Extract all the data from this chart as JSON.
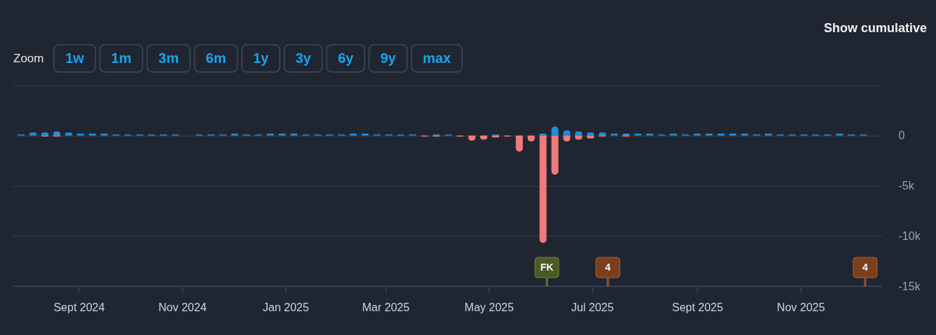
{
  "chart_data": {
    "type": "bar",
    "stacked": true,
    "grid": "y",
    "x": [
      "2024-07-29",
      "2024-08-05",
      "2024-08-12",
      "2024-08-19",
      "2024-08-26",
      "2024-09-02",
      "2024-09-09",
      "2024-09-16",
      "2024-09-23",
      "2024-09-30",
      "2024-10-07",
      "2024-10-14",
      "2024-10-21",
      "2024-10-28",
      "2024-11-04",
      "2024-11-11",
      "2024-11-18",
      "2024-11-25",
      "2024-12-02",
      "2024-12-09",
      "2024-12-16",
      "2024-12-23",
      "2024-12-30",
      "2025-01-06",
      "2025-01-13",
      "2025-01-20",
      "2025-01-27",
      "2025-02-03",
      "2025-02-10",
      "2025-02-17",
      "2025-02-24",
      "2025-03-03",
      "2025-03-10",
      "2025-03-17",
      "2025-03-24",
      "2025-03-31",
      "2025-04-07",
      "2025-04-14",
      "2025-04-21",
      "2025-04-28",
      "2025-05-05",
      "2025-05-12",
      "2025-05-19",
      "2025-05-26",
      "2025-06-02",
      "2025-06-09",
      "2025-06-16",
      "2025-06-23",
      "2025-06-30",
      "2025-07-07",
      "2025-07-14",
      "2025-07-21",
      "2025-07-28",
      "2025-08-04",
      "2025-08-11",
      "2025-08-18",
      "2025-08-25",
      "2025-09-01",
      "2025-09-08",
      "2025-09-15",
      "2025-09-22",
      "2025-09-29",
      "2025-10-06",
      "2025-10-13",
      "2025-10-20",
      "2025-10-27",
      "2025-11-03",
      "2025-11-10",
      "2025-11-17",
      "2025-11-24",
      "2025-12-01",
      "2025-12-08"
    ],
    "series": [
      {
        "color": "#1b8fe2",
        "values": [
          100,
          300,
          300,
          400,
          300,
          200,
          200,
          200,
          100,
          100,
          100,
          100,
          100,
          100,
          null,
          100,
          100,
          100,
          200,
          100,
          100,
          200,
          200,
          200,
          100,
          100,
          100,
          100,
          200,
          200,
          100,
          100,
          100,
          100,
          null,
          100,
          100,
          null,
          null,
          null,
          100,
          null,
          null,
          null,
          200,
          900,
          500,
          400,
          300,
          300,
          200,
          200,
          200,
          200,
          100,
          200,
          100,
          200,
          200,
          200,
          200,
          200,
          100,
          200,
          100,
          100,
          100,
          100,
          100,
          200,
          100,
          100
        ]
      },
      {
        "color": "#f07a7a",
        "values": [
          null,
          null,
          -100,
          -100,
          null,
          null,
          null,
          null,
          null,
          null,
          null,
          null,
          null,
          null,
          null,
          null,
          null,
          null,
          null,
          null,
          null,
          null,
          null,
          null,
          null,
          null,
          null,
          null,
          null,
          null,
          null,
          null,
          null,
          null,
          -100,
          -100,
          null,
          -100,
          -500,
          -400,
          -200,
          -100,
          -1600,
          -600,
          -10700,
          -3900,
          -600,
          -400,
          -300,
          -100,
          null,
          -100,
          null,
          null,
          null,
          null,
          null,
          null,
          null,
          null,
          null,
          null,
          null,
          null,
          null,
          null,
          null,
          null,
          null,
          null,
          null,
          null
        ]
      }
    ],
    "xlim": [
      "2024-07-26",
      "2025-12-17"
    ],
    "xticks": [
      {
        "value": "2024-09-01",
        "label": "Sept 2024"
      },
      {
        "value": "2024-11-01",
        "label": "Nov 2024"
      },
      {
        "value": "2025-01-01",
        "label": "Jan 2025"
      },
      {
        "value": "2025-03-01",
        "label": "Mar 2025"
      },
      {
        "value": "2025-05-01",
        "label": "May 2025"
      },
      {
        "value": "2025-07-01",
        "label": "Jul 2025"
      },
      {
        "value": "2025-09-01",
        "label": "Sept 2025"
      },
      {
        "value": "2025-11-01",
        "label": "Nov 2025"
      }
    ],
    "ylim": [
      -15000,
      5000
    ],
    "yticks": [
      {
        "value": 5000,
        "label": null
      },
      {
        "value": 0,
        "label": "0"
      },
      {
        "value": -5000,
        "label": "-5k"
      },
      {
        "value": -10000,
        "label": "-10k"
      },
      {
        "value": -15000,
        "label": "-15k"
      }
    ],
    "annotations": [
      "Show cumulative",
      "Zoom",
      "1w",
      "1m",
      "3m",
      "6m",
      "1y",
      "3y",
      "6y",
      "9y",
      "max",
      "FK",
      "4",
      "4"
    ]
  }
}
